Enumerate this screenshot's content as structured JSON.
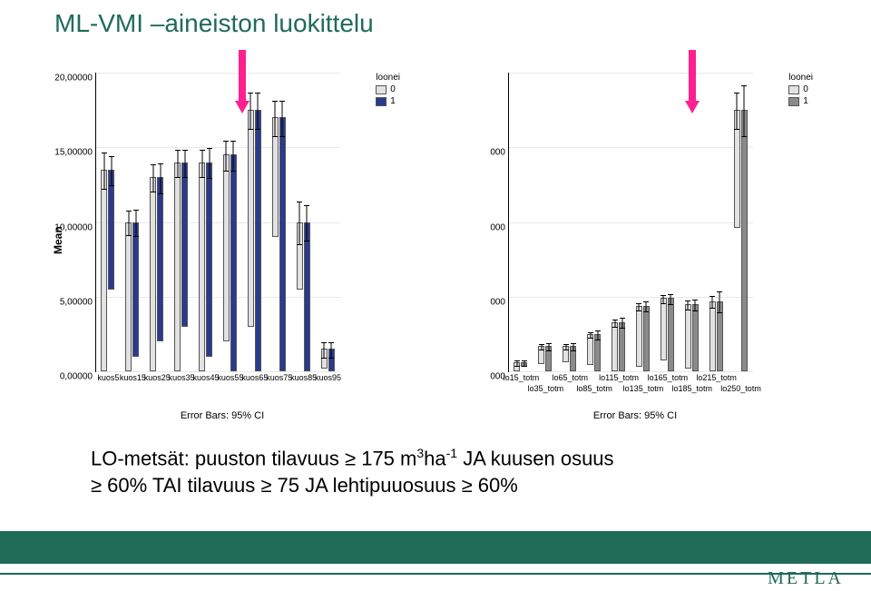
{
  "title": "ML-VMI –aineiston luokittelu",
  "caption_line1_a": "LO-metsät: puuston tilavuus ≥ 175 m",
  "caption_line1_b": "ha",
  "caption_line1_c": " JA kuusen osuus",
  "caption_line2": "≥ 60% TAI tilavuus ≥ 75 JA lehtipuuosuus ≥ 60%",
  "metla": "METLA",
  "colors": {
    "accent": "#1f6b57",
    "arrow": "#ff1f8f",
    "series0": "#e2e2e2",
    "series1_left": "#2a3a8f",
    "series1_right": "#8a8a8a",
    "bar_border": "#555555"
  },
  "left_chart": {
    "ylabel": "Mean",
    "ylim": [
      0,
      20
    ],
    "yticks": [
      0,
      5,
      10,
      15,
      20
    ],
    "ytick_labels": [
      "0,00000",
      "5,00000",
      "10,00000",
      "15,00000",
      "20,00000"
    ],
    "legend_title": "loonei",
    "legend_items": [
      "0",
      "1"
    ],
    "error_caption": "Error Bars: 95% CI",
    "categories": [
      "kuos5",
      "kuos15",
      "kuos25",
      "kuos35",
      "kuos45",
      "kuos55",
      "kuos65",
      "kuos75",
      "kuos85",
      "kuos95"
    ],
    "series0": [
      13.5,
      10.0,
      13.0,
      14.0,
      14.0,
      12.5,
      14.5,
      8.0,
      4.5,
      1.3
    ],
    "series1": [
      8.0,
      9.0,
      11.0,
      11.0,
      13.0,
      14.5,
      17.5,
      17.0,
      10.0,
      1.5
    ],
    "err0": [
      1.2,
      0.8,
      0.9,
      0.9,
      0.9,
      1.0,
      1.2,
      1.2,
      1.4,
      0.5
    ],
    "err1": [
      1.0,
      0.9,
      1.0,
      0.9,
      1.0,
      1.0,
      1.2,
      1.2,
      1.2,
      0.5
    ],
    "arrow_index": 5.5
  },
  "right_chart": {
    "ylabel": "",
    "ylim": [
      0,
      20000
    ],
    "yticks": [
      0,
      5000,
      10000,
      15000,
      20000
    ],
    "ytick_labels": [
      "000",
      "000",
      "000",
      "000",
      ""
    ],
    "legend_title": "loonei",
    "legend_items": [
      "0",
      "1"
    ],
    "error_caption": "Error Bars: 95% CI",
    "categories": [
      "lo15_totm",
      "lo35_totm",
      "lo65_totm",
      "lo85_totm",
      "lo115_totm",
      "lo135_totm",
      "lo165_totm",
      "lo185_totm",
      "lo215_totm",
      "lo250_totm"
    ],
    "series0": [
      600,
      1200,
      1100,
      2100,
      3300,
      4100,
      4200,
      4300,
      4700,
      7900
    ],
    "series1": [
      300,
      1700,
      1700,
      2500,
      3300,
      4400,
      4900,
      4500,
      4700,
      17500
    ],
    "err0": [
      200,
      200,
      200,
      200,
      250,
      250,
      250,
      300,
      400,
      1200
    ],
    "err1": [
      200,
      250,
      250,
      300,
      350,
      350,
      350,
      350,
      700,
      1700
    ],
    "arrow_index": 7
  }
}
